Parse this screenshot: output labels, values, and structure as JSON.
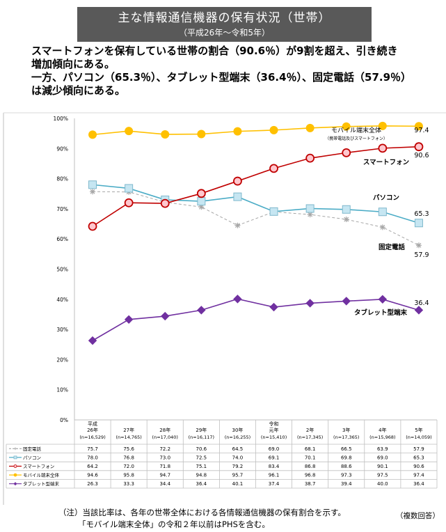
{
  "header": {
    "title": "主な情報通信機器の保有状況（世帯）",
    "subtitle": "（平成26年～令和5年）"
  },
  "summary": {
    "line1": "スマートフォンを保有している世帯の割合（90.6％）が9割を超え、引き続き",
    "line2": "増加傾向にある。",
    "line3": "一方、パソコン（65.3％）、タブレット型端末（36.4％）、固定電話（57.9％）",
    "line4": "は減少傾向にある。"
  },
  "notes": {
    "line1": "（注）当該比率は、各年の世帯全体における各情報通信機器の保有割合を示す。",
    "line2": "「モバイル端末全体」の令和２年以前はPHSを含む。",
    "multiple": "（複数回答）"
  },
  "chart_data": {
    "type": "line",
    "ylim": [
      0,
      100
    ],
    "yticks": [
      "0%",
      "10%",
      "20%",
      "30%",
      "40%",
      "50%",
      "60%",
      "70%",
      "80%",
      "90%",
      "100%"
    ],
    "categories": [
      {
        "year": [
          "平成",
          "26年"
        ],
        "n": "(n=16,529)"
      },
      {
        "year": [
          "27年"
        ],
        "n": "(n=14,765)"
      },
      {
        "year": [
          "28年"
        ],
        "n": "(n=17,040)"
      },
      {
        "year": [
          "29年"
        ],
        "n": "(n=16,117)"
      },
      {
        "year": [
          "30年"
        ],
        "n": "(n=16,255)"
      },
      {
        "year": [
          "令和",
          "元年"
        ],
        "n": "(n=15,410)"
      },
      {
        "year": [
          "2年"
        ],
        "n": "(n=17,345)"
      },
      {
        "year": [
          "3年"
        ],
        "n": "(n=17,365)"
      },
      {
        "year": [
          "4年"
        ],
        "n": "(n=15,968)"
      },
      {
        "year": [
          "5年"
        ],
        "n": "(n=14,059)"
      }
    ],
    "series": [
      {
        "name": "固定電話",
        "key": "fixed",
        "color": "#a6a6a6",
        "marker": "star",
        "dashed": true,
        "values": [
          75.7,
          75.6,
          72.2,
          70.6,
          64.5,
          69.0,
          68.1,
          66.5,
          63.9,
          57.9
        ],
        "label": "固定電話",
        "end_value": "57.9"
      },
      {
        "name": "パソコン",
        "key": "pc",
        "color": "#4bacc6",
        "marker": "square",
        "dashed": false,
        "values": [
          78.0,
          76.8,
          73.0,
          72.5,
          74.0,
          69.1,
          70.1,
          69.8,
          69.0,
          65.3
        ],
        "label": "パソコン",
        "end_value": "65.3"
      },
      {
        "name": "スマートフォン",
        "key": "smart",
        "color": "#c00000",
        "marker": "circle",
        "dashed": false,
        "values": [
          64.2,
          72.0,
          71.8,
          75.1,
          79.2,
          83.4,
          86.8,
          88.6,
          90.1,
          90.6
        ],
        "label": "スマートフォン",
        "end_value": "90.6"
      },
      {
        "name": "モバイル端末全体",
        "key": "mobile",
        "color": "#ffc000",
        "marker": "circle",
        "dashed": false,
        "values": [
          94.6,
          95.8,
          94.7,
          94.8,
          95.7,
          96.1,
          96.8,
          97.3,
          97.5,
          97.4
        ],
        "label": "モバイル端末全体",
        "sublabel": "（携帯電話及びスマートフォン）",
        "end_value": "97.4"
      },
      {
        "name": "タブレット型端末",
        "key": "tablet",
        "color": "#7030a0",
        "marker": "diamond",
        "dashed": false,
        "values": [
          26.3,
          33.3,
          34.4,
          36.4,
          40.1,
          37.4,
          38.7,
          39.4,
          40.0,
          36.4
        ],
        "label": "タブレット型端末",
        "end_value": "36.4"
      }
    ]
  }
}
